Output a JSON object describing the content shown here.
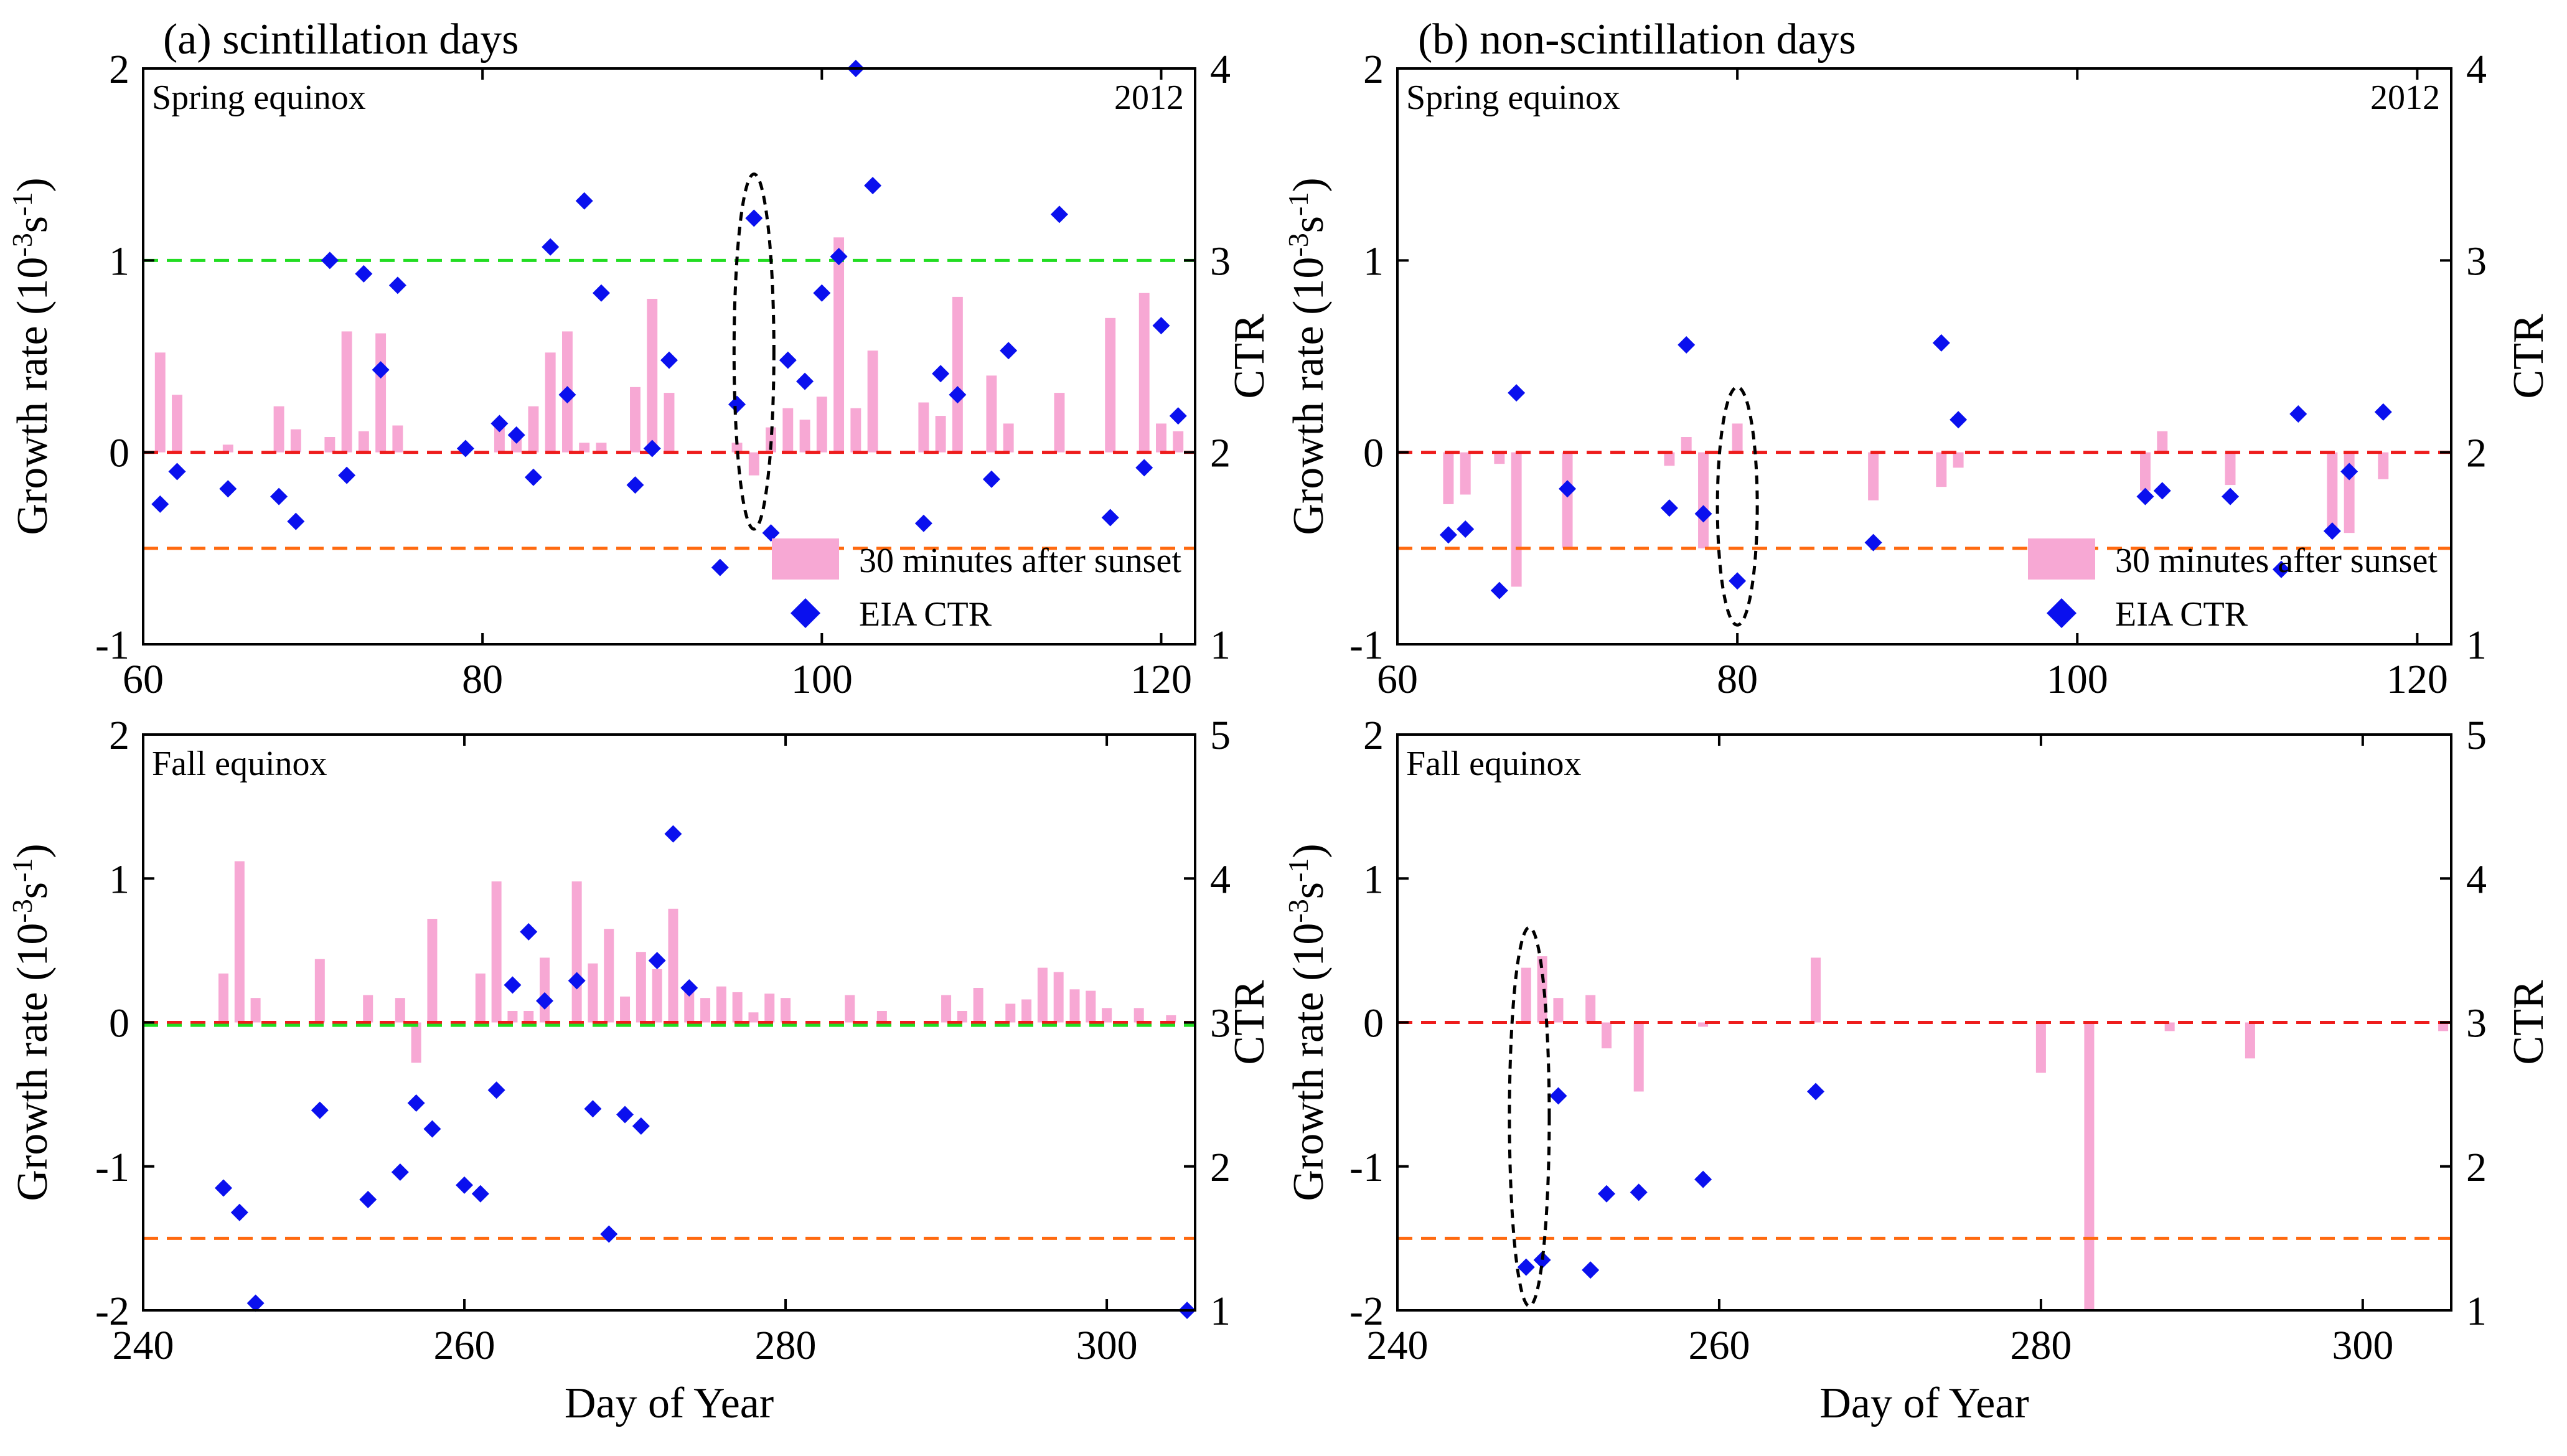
{
  "colors": {
    "bar": "#f7a8d4",
    "marker": "#0a10ee",
    "red_line": "#ee1c1c",
    "green_line": "#22dd22",
    "orange_line": "#ff6a10"
  },
  "panel_titles": {
    "a": "(a)  scintillation days",
    "b": "(b) non-scintillation days"
  },
  "labels": {
    "growth_rate": "Growth rate (10",
    "growth_rate_sup1": "-3",
    "growth_rate_mid": "s",
    "growth_rate_sup2": "-1",
    "growth_rate_end": ")",
    "ctr": "CTR",
    "day_of_year": "Day of Year",
    "spring": "Spring equinox",
    "fall": "Fall equinox",
    "year": "2012",
    "legend_bar": "30 minutes after sunset",
    "legend_marker": "EIA CTR"
  },
  "chart_data": [
    {
      "id": "a-spring",
      "type": "bar+scatter",
      "title": "Spring equinox",
      "annotation": "2012",
      "xlabel": "",
      "ylabel": "Growth rate (10^-3 s^-1)",
      "ylabel_right": "CTR",
      "xlim": [
        60,
        122
      ],
      "ylim": [
        -1,
        2
      ],
      "ylim_right": [
        1,
        4
      ],
      "xticks": [
        60,
        80,
        100,
        120
      ],
      "yticks": [
        -1,
        0,
        1,
        2
      ],
      "yticks_right": [
        1,
        2,
        3,
        4
      ],
      "hlines": [
        {
          "y": 0,
          "color": "red"
        },
        {
          "y": 1,
          "color": "green"
        },
        {
          "y": -0.5,
          "color": "orange"
        }
      ],
      "ellipse": {
        "day": 96,
        "ylow": -0.4,
        "yhigh": 1.45
      },
      "legend": true,
      "series": [
        {
          "name": "30 minutes after sunset",
          "kind": "bar",
          "x": [
            61,
            62,
            65,
            68,
            69,
            71,
            72,
            73,
            74,
            75,
            81,
            82,
            83,
            84,
            85,
            86,
            87,
            89,
            90,
            91,
            95,
            96,
            97,
            98,
            99,
            100,
            101,
            102,
            103,
            106,
            107,
            108,
            110,
            111,
            114,
            117,
            119,
            120,
            121
          ],
          "values": [
            0.52,
            0.3,
            0.04,
            0.24,
            0.12,
            0.08,
            0.63,
            0.11,
            0.62,
            0.14,
            0.15,
            0.07,
            0.24,
            0.52,
            0.63,
            0.05,
            0.05,
            0.34,
            0.8,
            0.31,
            0.05,
            -0.12,
            0.13,
            0.23,
            0.17,
            0.29,
            1.12,
            0.23,
            0.53,
            0.26,
            0.19,
            0.81,
            0.4,
            0.15,
            0.31,
            0.7,
            0.83,
            0.15,
            0.11
          ]
        },
        {
          "name": "EIA CTR",
          "kind": "scatter",
          "x": [
            61,
            62,
            65,
            68,
            69,
            71,
            72,
            73,
            74,
            75,
            79,
            81,
            82,
            83,
            84,
            85,
            86,
            87,
            89,
            90,
            91,
            94,
            95,
            96,
            97,
            98,
            99,
            100,
            101,
            102,
            103,
            106,
            107,
            108,
            110,
            111,
            114,
            117,
            119,
            120,
            121
          ],
          "values": [
            1.73,
            1.9,
            1.81,
            1.77,
            1.64,
            3.0,
            1.88,
            2.93,
            2.43,
            2.87,
            2.02,
            2.15,
            2.09,
            1.87,
            3.07,
            2.3,
            3.31,
            2.83,
            1.83,
            2.02,
            2.48,
            1.4,
            2.25,
            3.22,
            1.58,
            2.48,
            2.37,
            2.83,
            3.02,
            4.0,
            3.39,
            1.63,
            2.41,
            2.3,
            1.86,
            2.53,
            3.24,
            1.66,
            1.92,
            2.66,
            2.19
          ]
        }
      ]
    },
    {
      "id": "b-spring",
      "type": "bar+scatter",
      "title": "Spring equinox",
      "annotation": "2012",
      "xlabel": "",
      "ylabel": "Growth rate (10^-3 s^-1)",
      "ylabel_right": "CTR",
      "xlim": [
        60,
        122
      ],
      "ylim": [
        -1,
        2
      ],
      "ylim_right": [
        1,
        4
      ],
      "xticks": [
        60,
        80,
        100,
        120
      ],
      "yticks": [
        -1,
        0,
        1,
        2
      ],
      "yticks_right": [
        1,
        2,
        3,
        4
      ],
      "hlines": [
        {
          "y": 0,
          "color": "red"
        },
        {
          "y": -0.5,
          "color": "orange"
        }
      ],
      "ellipse": {
        "day": 80,
        "ylow": -0.9,
        "yhigh": 0.34
      },
      "legend": true,
      "series": [
        {
          "name": "30 minutes after sunset",
          "kind": "bar",
          "x": [
            63,
            64,
            66,
            67,
            70,
            76,
            77,
            78,
            80,
            88,
            92,
            93,
            104,
            105,
            109,
            115,
            116,
            118
          ],
          "values": [
            -0.27,
            -0.22,
            -0.06,
            -0.7,
            -0.5,
            -0.07,
            0.08,
            -0.5,
            0.15,
            -0.25,
            -0.18,
            -0.08,
            -0.2,
            0.11,
            -0.17,
            -0.4,
            -0.42,
            -0.14
          ]
        },
        {
          "name": "EIA CTR",
          "kind": "scatter",
          "x": [
            63,
            64,
            66,
            67,
            70,
            76,
            77,
            78,
            80,
            88,
            92,
            93,
            104,
            105,
            109,
            112,
            115,
            116,
            113,
            118
          ],
          "values": [
            1.57,
            1.6,
            1.28,
            2.31,
            1.81,
            1.71,
            2.56,
            1.68,
            1.33,
            1.53,
            2.57,
            2.17,
            1.77,
            1.8,
            1.77,
            1.39,
            1.59,
            1.9,
            2.2,
            2.21
          ]
        }
      ]
    },
    {
      "id": "a-fall",
      "type": "bar+scatter",
      "title": "Fall equinox",
      "xlabel": "Day of Year",
      "ylabel": "Growth rate (10^-3 s^-1)",
      "ylabel_right": "CTR",
      "xlim": [
        240,
        305.5
      ],
      "ylim": [
        -2,
        2
      ],
      "ylim_right": [
        1,
        5
      ],
      "xticks": [
        240,
        260,
        280,
        300
      ],
      "yticks": [
        -2,
        -1,
        0,
        1,
        2
      ],
      "yticks_right": [
        1,
        2,
        3,
        4,
        5
      ],
      "hlines": [
        {
          "y": 0,
          "color": "red"
        },
        {
          "y": -0.02,
          "color": "green"
        },
        {
          "y": -1.5,
          "color": "orange"
        }
      ],
      "legend": false,
      "series": [
        {
          "name": "30 minutes after sunset",
          "kind": "bar",
          "x": [
            245,
            246,
            247,
            251,
            254,
            256,
            257,
            258,
            261,
            262,
            263,
            264,
            265,
            267,
            268,
            269,
            270,
            271,
            272,
            273,
            274,
            275,
            276,
            277,
            278,
            279,
            280,
            284,
            286,
            290,
            291,
            292,
            294,
            295,
            296,
            297,
            298,
            299,
            300,
            302,
            304
          ],
          "values": [
            0.34,
            1.12,
            0.17,
            0.44,
            0.19,
            0.17,
            -0.28,
            0.72,
            0.34,
            0.98,
            0.08,
            0.08,
            0.45,
            0.98,
            0.41,
            0.65,
            0.18,
            0.49,
            0.37,
            0.79,
            0.24,
            0.17,
            0.25,
            0.21,
            0.07,
            0.2,
            0.17,
            0.19,
            0.08,
            0.19,
            0.08,
            0.24,
            0.13,
            0.16,
            0.38,
            0.35,
            0.23,
            0.22,
            0.1,
            0.1,
            0.05
          ]
        },
        {
          "name": "EIA CTR",
          "kind": "scatter",
          "x": [
            245,
            246,
            247,
            251,
            254,
            256,
            257,
            258,
            260,
            261,
            262,
            263,
            264,
            265,
            267,
            268,
            269,
            270,
            271,
            272,
            273,
            274,
            305
          ],
          "values": [
            1.85,
            1.68,
            1.05,
            2.39,
            1.77,
            1.96,
            2.44,
            2.26,
            1.87,
            1.81,
            2.53,
            3.26,
            3.63,
            3.15,
            3.29,
            2.4,
            1.53,
            2.36,
            2.28,
            3.43,
            4.31,
            3.24,
            1.0
          ]
        }
      ]
    },
    {
      "id": "b-fall",
      "type": "bar+scatter",
      "title": "Fall equinox",
      "xlabel": "Day of Year",
      "ylabel": "Growth rate (10^-3 s^-1)",
      "ylabel_right": "CTR",
      "xlim": [
        240,
        305.5
      ],
      "ylim": [
        -2,
        2
      ],
      "ylim_right": [
        1,
        5
      ],
      "xticks": [
        240,
        260,
        280,
        300
      ],
      "yticks": [
        -2,
        -1,
        0,
        1,
        2
      ],
      "yticks_right": [
        1,
        2,
        3,
        4,
        5
      ],
      "hlines": [
        {
          "y": 0,
          "color": "red"
        },
        {
          "y": -1.5,
          "color": "orange"
        }
      ],
      "ellipse": {
        "day": 248.2,
        "ylow": -1.97,
        "yhigh": 0.66
      },
      "legend": false,
      "series": [
        {
          "name": "30 minutes after sunset",
          "kind": "bar",
          "x": [
            248,
            249,
            250,
            252,
            253,
            255,
            259,
            266,
            280,
            283,
            288,
            293,
            305
          ],
          "values": [
            0.38,
            0.46,
            0.17,
            0.19,
            -0.18,
            -0.48,
            -0.03,
            0.45,
            -0.35,
            -2.0,
            -0.06,
            -0.25,
            -0.06
          ]
        },
        {
          "name": "EIA CTR",
          "kind": "scatter",
          "x": [
            248,
            249,
            250,
            252,
            253,
            255,
            259,
            266
          ],
          "values": [
            1.3,
            1.35,
            2.49,
            1.28,
            1.81,
            1.82,
            1.91,
            2.52
          ]
        }
      ]
    }
  ]
}
